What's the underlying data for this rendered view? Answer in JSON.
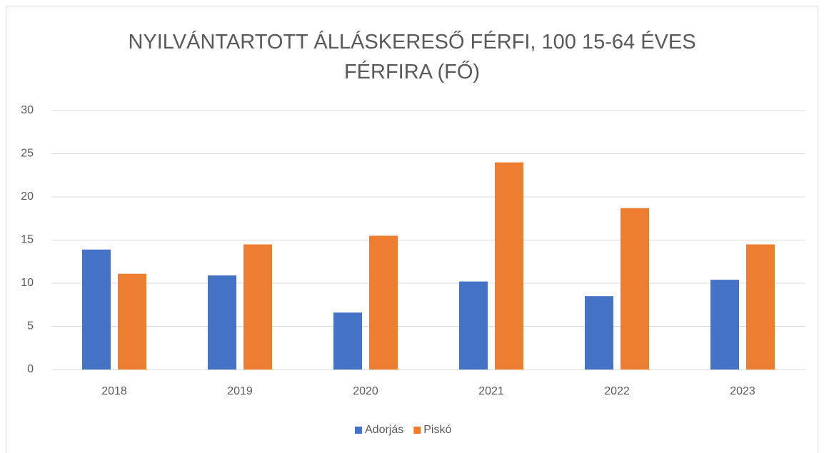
{
  "chart_data": {
    "type": "bar",
    "title": "NYILVÁNTARTOTT ÁLLÁSKERESŐ FÉRFI, 100 15-64 ÉVES FÉRFIRA (FŐ)",
    "categories": [
      "2018",
      "2019",
      "2020",
      "2021",
      "2022",
      "2023"
    ],
    "series": [
      {
        "name": "Adorjás",
        "color": "#4472c4",
        "values": [
          13.9,
          10.9,
          6.6,
          10.2,
          8.5,
          10.4
        ]
      },
      {
        "name": "Piskó",
        "color": "#ed7d31",
        "values": [
          11.1,
          14.5,
          15.5,
          24.0,
          18.7,
          14.5
        ]
      }
    ],
    "ylim": [
      0,
      30
    ],
    "yticks": [
      0,
      5,
      10,
      15,
      20,
      25,
      30
    ],
    "grid": true,
    "legend": "bottom"
  }
}
